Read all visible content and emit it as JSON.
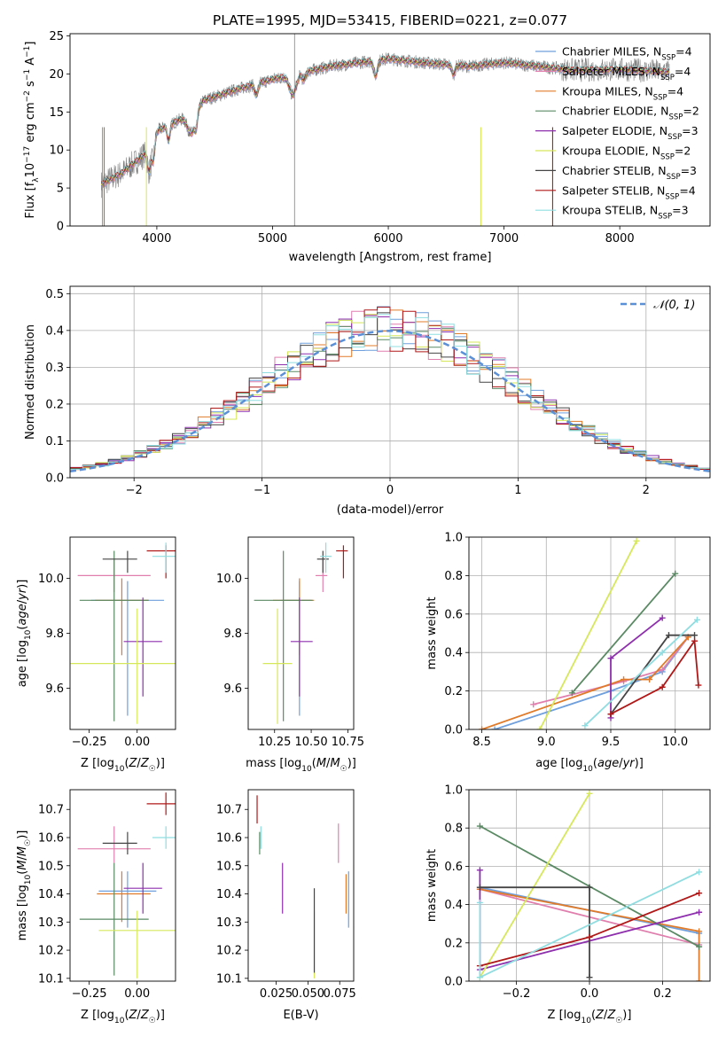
{
  "chart_data": [
    {
      "id": "spectrum",
      "type": "line",
      "title": "PLATE=1995, MJD=53415, FIBERID=0221, z=0.077",
      "xlabel": "wavelength [Angstrom, rest frame]",
      "ylabel_parts": [
        "Flux [f",
        "λ",
        "10",
        "−17",
        " erg cm",
        "−2",
        " s",
        "−1",
        " A",
        "−1",
        "]"
      ],
      "xlim": [
        3250,
        8780
      ],
      "ylim": [
        0,
        25.3
      ],
      "xticks": [
        4000,
        5000,
        6000,
        7000,
        8000
      ],
      "yticks": [
        0,
        5,
        10,
        15,
        20,
        25
      ],
      "grid": false,
      "legend_position": "right",
      "legend": [
        {
          "base": "Chabrier MILES, N",
          "sub": "SSP",
          "tail": "=4",
          "color": "#6f9fdc"
        },
        {
          "base": "Salpeter MILES, N",
          "sub": "SSP",
          "tail": "=4",
          "color": "#e07fae"
        },
        {
          "base": "Kroupa MILES, N",
          "sub": "SSP",
          "tail": "=4",
          "color": "#e07b2a"
        },
        {
          "base": "Chabrier ELODIE, N",
          "sub": "SSP",
          "tail": "=2",
          "color": "#5a8a63"
        },
        {
          "base": "Salpeter ELODIE, N",
          "sub": "SSP",
          "tail": "=3",
          "color": "#8e2fad"
        },
        {
          "base": "Kroupa ELODIE, N",
          "sub": "SSP",
          "tail": "=2",
          "color": "#d6e85a"
        },
        {
          "base": "Chabrier STELIB, N",
          "sub": "SSP",
          "tail": "=3",
          "color": "#454545"
        },
        {
          "base": "Salpeter STELIB, N",
          "sub": "SSP",
          "tail": "=4",
          "color": "#b01818"
        },
        {
          "base": "Kroupa STELIB, N",
          "sub": "SSP",
          "tail": "=3",
          "color": "#8fdde0"
        }
      ],
      "series_range": [
        3520,
        8430
      ],
      "data_color": "#808080",
      "continuum": [
        [
          3520,
          5.5
        ],
        [
          3700,
          7
        ],
        [
          3900,
          9.5
        ],
        [
          4000,
          12.5
        ],
        [
          4200,
          14
        ],
        [
          4400,
          16.5
        ],
        [
          4700,
          18
        ],
        [
          5000,
          19.3
        ],
        [
          5500,
          21
        ],
        [
          6000,
          22
        ],
        [
          6300,
          21.5
        ],
        [
          6700,
          21
        ],
        [
          7000,
          21.5
        ],
        [
          7300,
          21
        ],
        [
          7600,
          20.5
        ],
        [
          8000,
          20.6
        ],
        [
          8430,
          20.3
        ]
      ],
      "absorption": [
        [
          3934,
          3.2,
          14
        ],
        [
          3969,
          2.8,
          14
        ],
        [
          4102,
          2.0,
          12
        ],
        [
          4300,
          3.0,
          35
        ],
        [
          4340,
          1.5,
          12
        ],
        [
          4861,
          1.5,
          14
        ],
        [
          5175,
          2.6,
          30
        ],
        [
          5270,
          1.0,
          15
        ],
        [
          5890,
          2.0,
          16
        ],
        [
          6563,
          1.2,
          14
        ],
        [
          8498,
          1.0,
          10
        ],
        [
          8542,
          1.2,
          10
        ]
      ]
    },
    {
      "id": "residuals",
      "type": "histogram",
      "xlabel": "(data-model)/error",
      "ylabel": "Normed distribution",
      "xlim": [
        -2.5,
        2.5
      ],
      "ylim": [
        0,
        0.52
      ],
      "xticks": [
        -2,
        -1,
        0,
        1,
        2
      ],
      "yticks": [
        0.0,
        0.1,
        0.2,
        0.3,
        0.4,
        0.5
      ],
      "grid": true,
      "bin_width": 0.1,
      "legend_position": "top-right",
      "gaussian": {
        "mean": 0,
        "sigma": 1,
        "color": "#5b8fd6",
        "legend": "𝒩(0, 1)"
      }
    },
    {
      "id": "age-vs-Z",
      "type": "errorbar",
      "xlabel": "Z [log10(Z/Z☉)]",
      "ylabel": "age  [log10(age/yr)]",
      "xlim": [
        -0.35,
        0.2
      ],
      "ylim": [
        9.45,
        10.15
      ],
      "xticks": [
        "-0.25",
        "0.00"
      ],
      "yticks": [
        "9.6",
        "9.8",
        "10.0"
      ],
      "points": [
        {
          "color": "#6f9fdc",
          "x": -0.05,
          "xerr": [
            0.19,
            0.19
          ],
          "y": 9.92,
          "yerr": [
            0.42,
            0.07
          ]
        },
        {
          "color": "#e07fae",
          "x": -0.12,
          "xerr": [
            0.19,
            0.19
          ],
          "y": 10.01,
          "yerr": [
            0.06,
            0.06
          ]
        },
        {
          "color": "#e07b2a",
          "x": -0.08,
          "xerr": [
            0.14,
            0.14
          ],
          "y": 9.92,
          "yerr": [
            0.2,
            0.08
          ]
        },
        {
          "color": "#5a8a63",
          "x": -0.12,
          "xerr": [
            0.18,
            0.18
          ],
          "y": 9.92,
          "yerr": [
            0.44,
            0.18
          ]
        },
        {
          "color": "#8e2fad",
          "x": 0.03,
          "xerr": [
            0.1,
            0.1
          ],
          "y": 9.77,
          "yerr": [
            0.2,
            0.16
          ]
        },
        {
          "color": "#d6e85a",
          "x": 0.0,
          "xerr": [
            0.4,
            0.4
          ],
          "y": 9.69,
          "yerr": [
            0.22,
            0.2
          ]
        },
        {
          "color": "#454545",
          "x": -0.05,
          "xerr": [
            0.13,
            0.05
          ],
          "y": 10.07,
          "yerr": [
            0.05,
            0.03
          ]
        },
        {
          "color": "#b01818",
          "x": 0.15,
          "xerr": [
            0.1,
            0.12
          ],
          "y": 10.1,
          "yerr": [
            0.1,
            0.02
          ]
        },
        {
          "color": "#8fdde0",
          "x": 0.15,
          "xerr": [
            0.07,
            0.07
          ],
          "y": 10.08,
          "yerr": [
            0.06,
            0.05
          ]
        }
      ]
    },
    {
      "id": "age-vs-mass",
      "type": "errorbar",
      "xlabel": "mass [log10(M/M☉)]",
      "xlim": [
        10.07,
        10.79
      ],
      "ylim": [
        9.45,
        10.15
      ],
      "xticks": [
        "10.25",
        "10.50",
        "10.75"
      ],
      "yticks": [
        "9.6",
        "9.8",
        "10.0"
      ],
      "points": [
        {
          "color": "#6f9fdc",
          "x": 10.42,
          "xerr": [
            0.13,
            0.08
          ],
          "y": 9.92,
          "yerr": [
            0.42,
            0.07
          ]
        },
        {
          "color": "#e07fae",
          "x": 10.58,
          "xerr": [
            0.05,
            0.03
          ],
          "y": 10.01,
          "yerr": [
            0.06,
            0.06
          ]
        },
        {
          "color": "#e07b2a",
          "x": 10.42,
          "xerr": [
            0.18,
            0.1
          ],
          "y": 9.92,
          "yerr": [
            0.2,
            0.08
          ]
        },
        {
          "color": "#5a8a63",
          "x": 10.31,
          "xerr": [
            0.2,
            0.2
          ],
          "y": 9.92,
          "yerr": [
            0.44,
            0.18
          ]
        },
        {
          "color": "#8e2fad",
          "x": 10.42,
          "xerr": [
            0.06,
            0.09
          ],
          "y": 9.77,
          "yerr": [
            0.2,
            0.16
          ]
        },
        {
          "color": "#d6e85a",
          "x": 10.27,
          "xerr": [
            0.1,
            0.1
          ],
          "y": 9.69,
          "yerr": [
            0.22,
            0.2
          ]
        },
        {
          "color": "#454545",
          "x": 10.58,
          "xerr": [
            0.04,
            0.04
          ],
          "y": 10.07,
          "yerr": [
            0.05,
            0.03
          ]
        },
        {
          "color": "#b01818",
          "x": 10.72,
          "xerr": [
            0.05,
            0.03
          ],
          "y": 10.1,
          "yerr": [
            0.1,
            0.02
          ]
        },
        {
          "color": "#8fdde0",
          "x": 10.6,
          "xerr": [
            0.04,
            0.04
          ],
          "y": 10.08,
          "yerr": [
            0.06,
            0.05
          ]
        }
      ]
    },
    {
      "id": "weight-vs-age",
      "type": "line",
      "xlabel": "age  [log10(age/yr)]",
      "ylabel": "mass weight",
      "xlim": [
        8.4,
        10.27
      ],
      "ylim": [
        0,
        1
      ],
      "xticks": [
        "8.5",
        "9.0",
        "9.5",
        "10.0"
      ],
      "yticks": [
        "0.0",
        "0.2",
        "0.4",
        "0.6",
        "0.8",
        "1.0"
      ],
      "grid": true,
      "series": [
        {
          "color": "#6f9fdc",
          "points": [
            [
              8.6,
              0.0
            ],
            [
              9.5,
              0.2
            ],
            [
              9.9,
              0.3
            ],
            [
              10.1,
              0.48
            ]
          ]
        },
        {
          "color": "#e07fae",
          "points": [
            [
              8.9,
              0.13
            ],
            [
              9.6,
              0.25
            ],
            [
              9.9,
              0.31
            ],
            [
              10.1,
              0.48
            ]
          ]
        },
        {
          "color": "#e07b2a",
          "points": [
            [
              8.5,
              0.0
            ],
            [
              9.6,
              0.26
            ],
            [
              9.8,
              0.26
            ],
            [
              10.1,
              0.48
            ]
          ]
        },
        {
          "color": "#5a8a63",
          "points": [
            [
              9.2,
              0.19
            ],
            [
              10.0,
              0.81
            ]
          ]
        },
        {
          "color": "#8e2fad",
          "points": [
            [
              9.5,
              0.06
            ],
            [
              9.5,
              0.37
            ],
            [
              9.9,
              0.58
            ]
          ]
        },
        {
          "color": "#d6e85a",
          "points": [
            [
              8.95,
              0.0
            ],
            [
              9.7,
              0.98
            ]
          ]
        },
        {
          "color": "#454545",
          "points": [
            [
              9.5,
              0.08
            ],
            [
              9.95,
              0.49
            ],
            [
              10.15,
              0.49
            ]
          ]
        },
        {
          "color": "#b01818",
          "points": [
            [
              9.5,
              0.08
            ],
            [
              9.9,
              0.22
            ],
            [
              10.15,
              0.46
            ],
            [
              10.18,
              0.23
            ]
          ]
        },
        {
          "color": "#8fdde0",
          "points": [
            [
              9.3,
              0.02
            ],
            [
              9.9,
              0.4
            ],
            [
              10.17,
              0.57
            ]
          ]
        }
      ]
    },
    {
      "id": "mass-vs-Z",
      "type": "errorbar",
      "xlabel": "Z [log10(Z/Z☉)]",
      "ylabel": "mass [log10(M/M☉)]",
      "xlim": [
        -0.35,
        0.2
      ],
      "ylim": [
        10.09,
        10.77
      ],
      "xticks": [
        "-0.25",
        "0.00"
      ],
      "yticks": [
        "10.1",
        "10.2",
        "10.3",
        "10.4",
        "10.5",
        "10.6",
        "10.7"
      ],
      "points": [
        {
          "color": "#6f9fdc",
          "x": -0.05,
          "xerr": [
            0.15,
            0.15
          ],
          "y": 10.41,
          "yerr": [
            0.13,
            0.07
          ]
        },
        {
          "color": "#e07fae",
          "x": -0.12,
          "xerr": [
            0.19,
            0.19
          ],
          "y": 10.56,
          "yerr": [
            0.05,
            0.08
          ]
        },
        {
          "color": "#e07b2a",
          "x": -0.08,
          "xerr": [
            0.13,
            0.15
          ],
          "y": 10.4,
          "yerr": [
            0.1,
            0.08
          ]
        },
        {
          "color": "#5a8a63",
          "x": -0.12,
          "xerr": [
            0.18,
            0.18
          ],
          "y": 10.31,
          "yerr": [
            0.2,
            0.2
          ]
        },
        {
          "color": "#8e2fad",
          "x": 0.03,
          "xerr": [
            0.1,
            0.1
          ],
          "y": 10.42,
          "yerr": [
            0.09,
            0.09
          ]
        },
        {
          "color": "#d6e85a",
          "x": 0.0,
          "xerr": [
            0.2,
            0.2
          ],
          "y": 10.27,
          "yerr": [
            0.17,
            0.07
          ]
        },
        {
          "color": "#454545",
          "x": -0.05,
          "xerr": [
            0.13,
            0.05
          ],
          "y": 10.58,
          "yerr": [
            0.04,
            0.04
          ]
        },
        {
          "color": "#b01818",
          "x": 0.15,
          "xerr": [
            0.1,
            0.07
          ],
          "y": 10.72,
          "yerr": [
            0.04,
            0.04
          ]
        },
        {
          "color": "#8fdde0",
          "x": 0.15,
          "xerr": [
            0.07,
            0.07
          ],
          "y": 10.6,
          "yerr": [
            0.04,
            0.04
          ]
        }
      ]
    },
    {
      "id": "mass-vs-EBV",
      "type": "errorbar",
      "xlabel": "E(B-V)",
      "xlim": [
        0.003,
        0.086
      ],
      "ylim": [
        10.09,
        10.77
      ],
      "xticks": [
        "0.025",
        "0.050",
        "0.075"
      ],
      "yticks": [
        "10.1",
        "10.2",
        "10.3",
        "10.4",
        "10.5",
        "10.6",
        "10.7"
      ],
      "points": [
        {
          "color": "#6f9fdc",
          "x": 0.082,
          "y": 10.38,
          "yerr": [
            0.1,
            0.1
          ]
        },
        {
          "color": "#e07fae",
          "x": 0.074,
          "y": 10.58,
          "yerr": [
            0.07,
            0.07
          ]
        },
        {
          "color": "#e07b2a",
          "x": 0.08,
          "y": 10.4,
          "yerr": [
            0.07,
            0.07
          ]
        },
        {
          "color": "#5a8a63",
          "x": 0.012,
          "y": 10.58,
          "yerr": [
            0.04,
            0.04
          ]
        },
        {
          "color": "#8e2fad",
          "x": 0.03,
          "y": 10.42,
          "yerr": [
            0.09,
            0.09
          ]
        },
        {
          "color": "#d6e85a",
          "x": 0.055,
          "y": 10.27,
          "yerr": [
            0.17,
            0.07
          ]
        },
        {
          "color": "#454545",
          "x": 0.055,
          "y": 10.3,
          "yerr": [
            0.18,
            0.12
          ]
        },
        {
          "color": "#b01818",
          "x": 0.01,
          "y": 10.7,
          "yerr": [
            0.05,
            0.05
          ]
        },
        {
          "color": "#8fdde0",
          "x": 0.013,
          "y": 10.6,
          "yerr": [
            0.04,
            0.04
          ]
        }
      ]
    },
    {
      "id": "weight-vs-Z",
      "type": "line",
      "xlabel": "Z [log10(Z/Z☉)]",
      "ylabel": "mass weight",
      "xlim": [
        -0.33,
        0.33
      ],
      "ylim": [
        0,
        1
      ],
      "xticks": [
        "-0.2",
        "0.0",
        "0.2"
      ],
      "yticks": [
        "0.0",
        "0.2",
        "0.4",
        "0.6",
        "0.8",
        "1.0"
      ],
      "grid": true,
      "series": [
        {
          "color": "#6f9fdc",
          "points": [
            [
              -0.3,
              0.49
            ],
            [
              0.3,
              0.25
            ]
          ]
        },
        {
          "color": "#e07fae",
          "points": [
            [
              -0.3,
              0.48
            ],
            [
              0.3,
              0.19
            ]
          ]
        },
        {
          "color": "#e07b2a",
          "points": [
            [
              -0.3,
              0.48
            ],
            [
              0.3,
              0.26
            ],
            [
              0.3,
              0.0
            ]
          ]
        },
        {
          "color": "#5a8a63",
          "points": [
            [
              -0.3,
              0.81
            ],
            [
              0.3,
              0.18
            ]
          ]
        },
        {
          "color": "#8e2fad",
          "points": [
            [
              -0.3,
              0.58
            ],
            [
              -0.3,
              0.06
            ],
            [
              0.3,
              0.36
            ]
          ]
        },
        {
          "color": "#d6e85a",
          "points": [
            [
              -0.3,
              0.02
            ],
            [
              0.0,
              0.98
            ]
          ]
        },
        {
          "color": "#454545",
          "points": [
            [
              -0.3,
              0.49
            ],
            [
              0.0,
              0.49
            ],
            [
              0.0,
              0.02
            ]
          ]
        },
        {
          "color": "#b01818",
          "points": [
            [
              -0.3,
              0.08
            ],
            [
              0.0,
              0.23
            ],
            [
              0.3,
              0.46
            ]
          ]
        },
        {
          "color": "#8fdde0",
          "points": [
            [
              -0.3,
              0.41
            ],
            [
              -0.3,
              0.02
            ],
            [
              0.3,
              0.57
            ]
          ]
        }
      ]
    }
  ]
}
